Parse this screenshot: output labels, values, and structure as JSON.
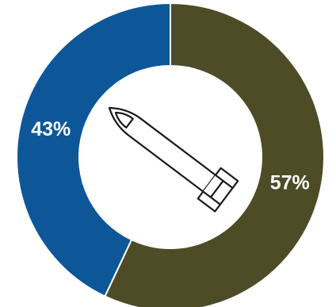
{
  "chart_data": {
    "type": "donut",
    "values": [
      57,
      43
    ],
    "value_labels": [
      "57%",
      "43%"
    ],
    "colors": [
      "#4d4c27",
      "#0d5799"
    ]
  }
}
